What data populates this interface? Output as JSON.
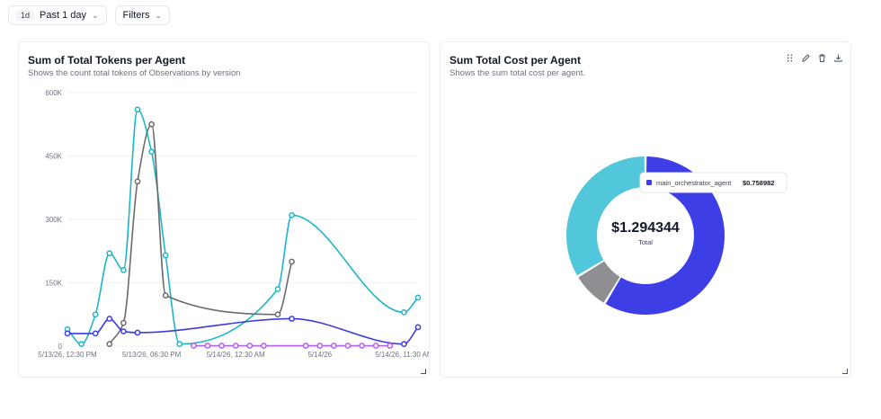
{
  "toolbar": {
    "range_badge": "1d",
    "range_label": "Past 1 day",
    "filters_label": "Filters"
  },
  "left_card": {
    "title": "Sum of Total Tokens per Agent",
    "subtitle": "Shows the count total tokens of Observations by version"
  },
  "right_card": {
    "title": "Sum Total Cost per Agent",
    "subtitle": "Shows the sum total cost per agent.",
    "total_value": "$1.294344",
    "total_label": "Total",
    "tooltip_name": "main_orchestrator_agent",
    "tooltip_value": "$0.758982"
  },
  "icons": [
    "drag-handle-icon",
    "pencil-icon",
    "trash-icon",
    "download-icon",
    "chevron-down-icon",
    "resize-handle-icon"
  ],
  "chart_data": [
    {
      "type": "line",
      "title": "Sum of Total Tokens per Agent",
      "subtitle": "Shows the count total tokens of Observations by version",
      "ylim": [
        0,
        600000
      ],
      "yticks": [
        0,
        150000,
        300000,
        450000,
        600000
      ],
      "ytick_labels": [
        "0",
        "150K",
        "300K",
        "450K",
        "600K"
      ],
      "xlim": [
        0,
        25
      ],
      "xticks": [
        0,
        6,
        12,
        18,
        24
      ],
      "xtick_labels": [
        "5/13/26, 12:30 PM",
        "5/13/26, 06:30 PM",
        "5/14/26, 12:30 AM",
        "5/14/26",
        "5/14/26, 11:30 AM"
      ],
      "grid": true,
      "legend": "none",
      "series": [
        {
          "color": "#1fb5c9",
          "points": [
            [
              0,
              40000
            ],
            [
              1,
              5000
            ],
            [
              2,
              75000
            ],
            [
              3,
              220000
            ],
            [
              4,
              180000
            ],
            [
              5,
              560000
            ],
            [
              6,
              460000
            ],
            [
              7,
              215000
            ],
            [
              8,
              5000
            ],
            [
              15,
              135000
            ],
            [
              16,
              310000
            ],
            [
              24,
              80000
            ],
            [
              25,
              115000
            ]
          ]
        },
        {
          "color": "#6b6b6e",
          "points": [
            [
              3,
              5000
            ],
            [
              4,
              55000
            ],
            [
              5,
              390000
            ],
            [
              6,
              525000
            ],
            [
              7,
              120000
            ],
            [
              15,
              75000
            ],
            [
              16,
              200000
            ]
          ]
        },
        {
          "color": "#3b3be0",
          "points": [
            [
              0,
              30000
            ],
            [
              2,
              30000
            ],
            [
              3,
              65000
            ],
            [
              4,
              35000
            ],
            [
              5,
              32000
            ],
            [
              16,
              65000
            ],
            [
              24,
              5000
            ],
            [
              25,
              45000
            ]
          ]
        },
        {
          "color": "#b45eea",
          "points": [
            [
              9,
              1000
            ],
            [
              10,
              1000
            ],
            [
              11,
              1000
            ],
            [
              12,
              1000
            ],
            [
              13,
              1000
            ],
            [
              14,
              1000
            ],
            [
              17,
              1000
            ],
            [
              18,
              1000
            ],
            [
              19,
              1000
            ],
            [
              20,
              1000
            ],
            [
              21,
              1000
            ],
            [
              22,
              1000
            ],
            [
              23,
              1000
            ]
          ]
        }
      ]
    },
    {
      "type": "pie",
      "title": "Sum Total Cost per Agent",
      "subtitle": "Shows the sum total cost per agent.",
      "total": 1.294344,
      "slices": [
        {
          "name": "main_orchestrator_agent",
          "value": 0.758982,
          "color": "#3d3ee6"
        },
        {
          "name": "",
          "value": 0.1,
          "color": "#8e8e93"
        },
        {
          "name": "",
          "value": 0.435362,
          "color": "#52c7dc"
        }
      ],
      "legend": "none"
    }
  ]
}
